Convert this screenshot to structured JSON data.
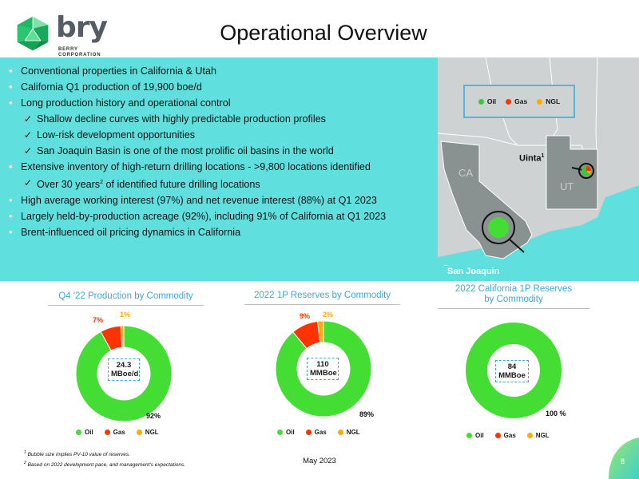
{
  "logo": {
    "word": "bry",
    "sub_line1": "BERRY",
    "sub_line2": "CORPORATION"
  },
  "page_title": "Operational Overview",
  "bullets": [
    {
      "level": 1,
      "text": "Conventional properties in California & Utah"
    },
    {
      "level": 1,
      "text": "California Q1 production of 19,900 boe/d"
    },
    {
      "level": 1,
      "text": "Long production history and operational control"
    },
    {
      "level": 2,
      "text": "Shallow decline curves with highly predictable production profiles"
    },
    {
      "level": 2,
      "text": "Low-risk development opportunities"
    },
    {
      "level": 2,
      "text": "San Joaquin Basin is one of the most prolific oil basins in the world"
    },
    {
      "level": 1,
      "text": "Extensive inventory of high-return drilling locations - >9,800 locations identified"
    },
    {
      "level": 2,
      "text": "Over 30 years",
      "sup": "2",
      "after": " of identified future drilling locations"
    },
    {
      "level": 1,
      "text": "High average working interest (97%) and net revenue interest (88%) at Q1 2023"
    },
    {
      "level": 1,
      "text": "Largely held-by-production acreage (92%), including 91% of California at Q1 2023"
    },
    {
      "level": 1,
      "text": "Brent-influenced oil pricing dynamics in California"
    }
  ],
  "map": {
    "legend": [
      {
        "label": "Oil",
        "color": "#33cc33"
      },
      {
        "label": "Gas",
        "color": "#ff3300"
      },
      {
        "label": "NGL",
        "color": "#ffaa00"
      }
    ],
    "state_ca": "CA",
    "state_ut": "UT",
    "uinta_label": "Uinta",
    "uinta_sup": "1",
    "san_joaquin_label": "San Joaquin"
  },
  "colors": {
    "oil": "#44dd33",
    "gas": "#ff3300",
    "ngl": "#ffaa00",
    "accent": "#3fa8d8",
    "band": "#5fe0de"
  },
  "chart_data": [
    {
      "type": "pie",
      "title": "Q4 '22 Production by Commodity",
      "categories": [
        "Oil",
        "Gas",
        "NGL"
      ],
      "values": [
        92,
        7,
        1
      ],
      "value_labels": [
        "92%",
        "7%",
        "1%"
      ],
      "center_line1": "24.3",
      "center_line2": "MBoe/d"
    },
    {
      "type": "pie",
      "title": "2022 1P Reserves by Commodity",
      "categories": [
        "Oil",
        "Gas",
        "NGL"
      ],
      "values": [
        89,
        9,
        2
      ],
      "value_labels": [
        "89%",
        "9%",
        "2%"
      ],
      "center_line1": "110",
      "center_line2": "MMBoe"
    },
    {
      "type": "pie",
      "title_line1": "2022 California 1P Reserves",
      "title_line2": "by Commodity",
      "categories": [
        "Oil",
        "Gas",
        "NGL"
      ],
      "values": [
        100,
        0,
        0
      ],
      "value_labels": [
        "100 %"
      ],
      "center_line1": "84",
      "center_line2": "MMBoe"
    }
  ],
  "footnotes": {
    "note1_num": "1",
    "note1": " Bubble size implies PV-10 value of reserves.",
    "note2_num": "2",
    "note2": " Based on 2022 development pace, and management's expectations."
  },
  "date": "May 2023",
  "page_number": "8"
}
